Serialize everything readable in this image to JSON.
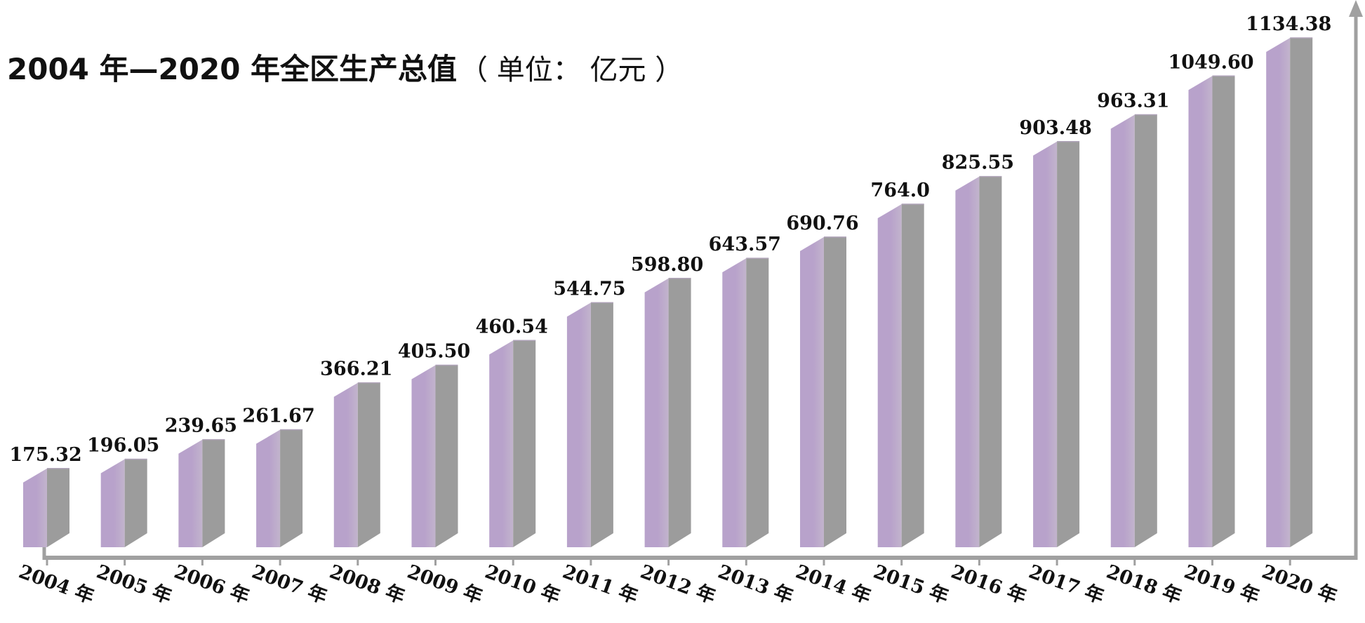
{
  "chart_data": {
    "type": "bar",
    "title": "2004 年—2020 年全区生产总值",
    "title_unit": "（ 单位：  亿元 ）",
    "categories": [
      "2004 年",
      "2005 年",
      "2006 年",
      "2007 年",
      "2008 年",
      "2009 年",
      "2010 年",
      "2011 年",
      "2012 年",
      "2013 年",
      "2014 年",
      "2015 年",
      "2016 年",
      "2017 年",
      "2018 年",
      "2019 年",
      "2020 年"
    ],
    "values": [
      175.32,
      196.05,
      239.65,
      261.67,
      366.21,
      405.5,
      460.54,
      544.75,
      598.8,
      643.57,
      690.76,
      764.0,
      825.55,
      903.48,
      963.31,
      1049.6,
      1134.38
    ],
    "data_labels": [
      "175.32",
      "196.05",
      "239.65",
      "261.67",
      "366.21",
      "405.50",
      "460.54",
      "544.75",
      "598.80",
      "643.57",
      "690.76",
      "764.0",
      "825.55",
      "903.48",
      "963.31",
      "1049.60",
      "1134.38"
    ],
    "xlabel": "",
    "ylabel": "",
    "ylim": [
      0,
      1134.38
    ],
    "grid": false,
    "legend": "none",
    "bar_style": "3d",
    "colors": {
      "bar_front_light": "#b8a2cb",
      "bar_front_mid": "#c2b4cc",
      "bar_side": "#9c9c9c",
      "bar_top": "#b0a4b9",
      "axis": "#a0a0a0"
    }
  }
}
